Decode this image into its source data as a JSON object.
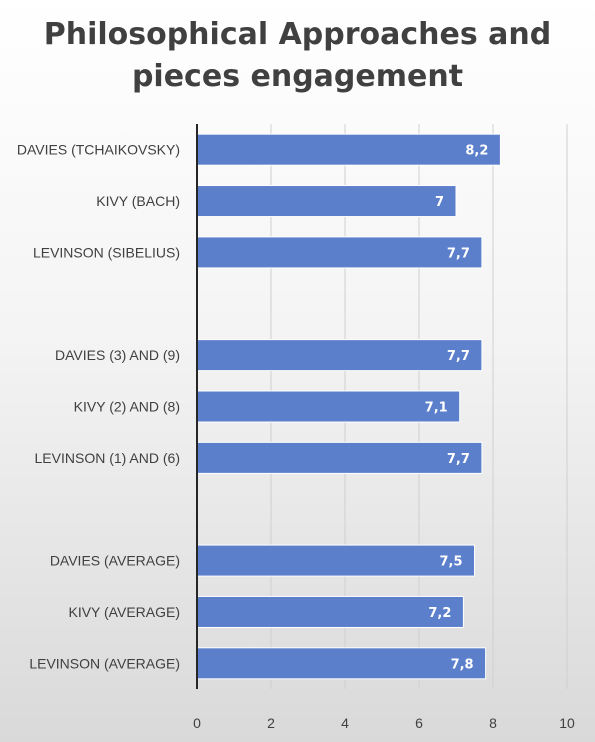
{
  "chart_data": {
    "type": "bar",
    "orientation": "horizontal",
    "title_lines": [
      "Philosophical Approaches and",
      "pieces engagement"
    ],
    "categories": [
      "DAVIES (TCHAIKOVSKY)",
      "KIVY (BACH)",
      "LEVINSON (SIBELIUS)",
      "",
      "DAVIES (3) AND (9)",
      "KIVY (2) AND (8)",
      "LEVINSON (1) AND (6)",
      "",
      "DAVIES (AVERAGE)",
      "KIVY (AVERAGE)",
      "LEVINSON (AVERAGE)"
    ],
    "values": [
      8.2,
      7,
      7.7,
      null,
      7.7,
      7.1,
      7.7,
      null,
      7.5,
      7.2,
      7.8
    ],
    "data_labels": [
      "8,2",
      "7",
      "7,7",
      "",
      "7,7",
      "7,1",
      "7,7",
      "",
      "7,5",
      "7,2",
      "7,8"
    ],
    "xlim": [
      0,
      10
    ],
    "x_ticks": [
      0,
      2,
      4,
      6,
      8,
      10
    ],
    "x_tick_labels": [
      "0",
      "2",
      "4",
      "6",
      "8",
      "10"
    ],
    "grid": true,
    "bar_color": "#5b7fcb",
    "bar_edge_color": "#ffffff",
    "legend": "none"
  }
}
